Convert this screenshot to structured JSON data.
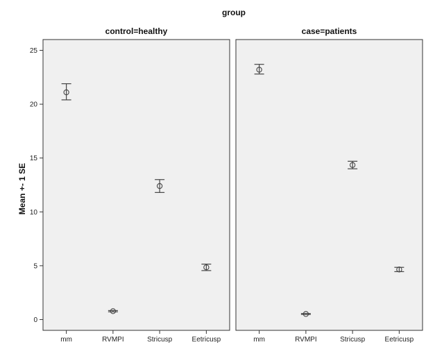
{
  "chart_data": {
    "type": "error-bar",
    "title": "group",
    "ylabel": "Mean +- 1 SE",
    "ylim": [
      -1,
      26
    ],
    "yticks": [
      0,
      5,
      10,
      15,
      20,
      25
    ],
    "categories": [
      "mm",
      "RVMPI",
      "Stricusp",
      "Eetricusp"
    ],
    "grid": false,
    "panels": [
      {
        "title": "control=healthy",
        "points": [
          {
            "category": "mm",
            "mean": 21.1,
            "lower": 20.4,
            "upper": 21.9
          },
          {
            "category": "RVMPI",
            "mean": 0.78,
            "lower": 0.72,
            "upper": 0.84
          },
          {
            "category": "Stricusp",
            "mean": 12.4,
            "lower": 11.8,
            "upper": 13.0
          },
          {
            "category": "Eetricusp",
            "mean": 4.85,
            "lower": 4.55,
            "upper": 5.15
          }
        ]
      },
      {
        "title": "case=patients",
        "points": [
          {
            "category": "mm",
            "mean": 23.2,
            "lower": 22.8,
            "upper": 23.7
          },
          {
            "category": "RVMPI",
            "mean": 0.52,
            "lower": 0.48,
            "upper": 0.56
          },
          {
            "category": "Stricusp",
            "mean": 14.35,
            "lower": 14.0,
            "upper": 14.7
          },
          {
            "category": "Eetricusp",
            "mean": 4.65,
            "lower": 4.45,
            "upper": 4.85
          }
        ]
      }
    ]
  }
}
